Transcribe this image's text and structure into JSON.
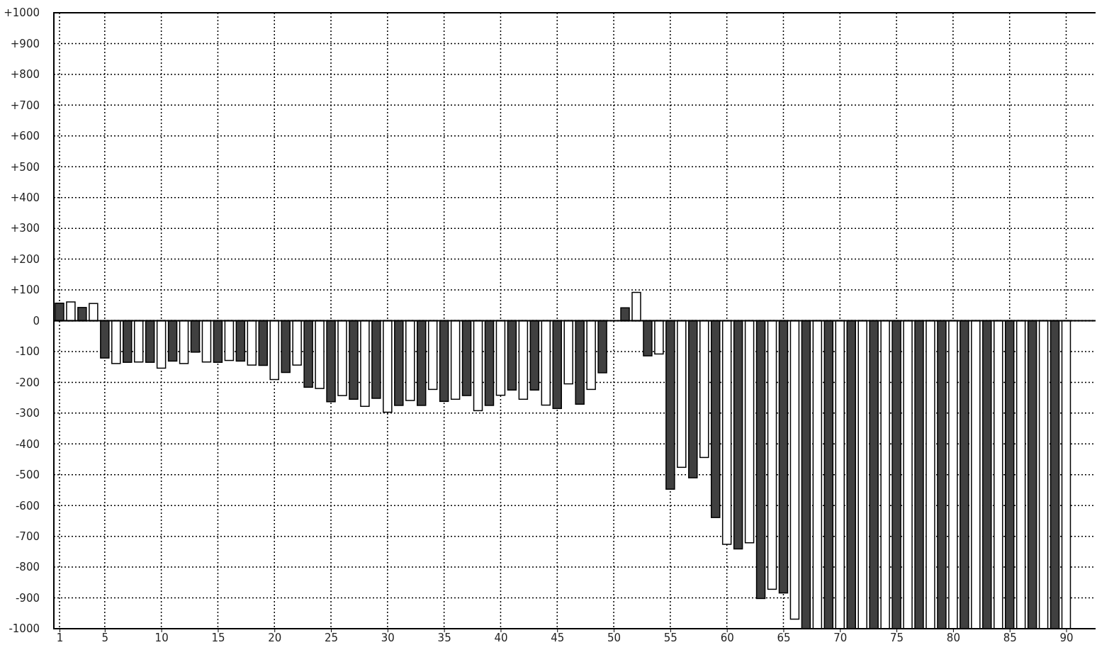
{
  "chart_data": {
    "type": "bar",
    "x": [
      1,
      2,
      3,
      4,
      5,
      6,
      7,
      8,
      9,
      10,
      11,
      12,
      13,
      14,
      15,
      16,
      17,
      18,
      19,
      20,
      21,
      22,
      23,
      24,
      25,
      26,
      27,
      28,
      29,
      30,
      31,
      32,
      33,
      34,
      35,
      36,
      37,
      38,
      39,
      40,
      41,
      42,
      43,
      44,
      45,
      46,
      47,
      48,
      49,
      50,
      51,
      52,
      53,
      54,
      55,
      56,
      57,
      58,
      59,
      60,
      61,
      62,
      63,
      64,
      65,
      66,
      67,
      68,
      69,
      70,
      71,
      72,
      73,
      74,
      75,
      76,
      77,
      78,
      79,
      80,
      81,
      82,
      83,
      84,
      85,
      86,
      87,
      88,
      89,
      90
    ],
    "values": [
      57,
      61,
      43,
      56,
      -121,
      -139,
      -135,
      -134,
      -135,
      -154,
      -131,
      -139,
      -102,
      -134,
      -135,
      -129,
      -131,
      -144,
      -145,
      -191,
      -168,
      -144,
      -216,
      -220,
      -263,
      -243,
      -255,
      -278,
      -252,
      -297,
      -275,
      -259,
      -275,
      -223,
      -262,
      -255,
      -243,
      -292,
      -275,
      -242,
      -225,
      -255,
      -225,
      -274,
      -285,
      -205,
      -271,
      -223,
      -169,
      0,
      42,
      92,
      -114,
      -108,
      -547,
      -476,
      -510,
      -444,
      -639,
      -726,
      -741,
      -721,
      -902,
      -872,
      -884,
      -969,
      -1000,
      -1000,
      -1000,
      -1000,
      -1000,
      -1000,
      -1000,
      -1000,
      -1000,
      -1000,
      -1000,
      -1000,
      -1000,
      -1000,
      -1000,
      -1000,
      -1000,
      -1000,
      -1000,
      -1000,
      -1000,
      -1000,
      -1000,
      -1000
    ],
    "colors": [
      "#404040",
      "#ffffff",
      "#404040",
      "#ffffff",
      "#404040",
      "#ffffff",
      "#404040",
      "#ffffff",
      "#404040",
      "#ffffff",
      "#404040",
      "#ffffff",
      "#404040",
      "#ffffff",
      "#404040",
      "#ffffff",
      "#404040",
      "#ffffff",
      "#404040",
      "#ffffff",
      "#404040",
      "#ffffff",
      "#404040",
      "#ffffff",
      "#404040",
      "#ffffff",
      "#404040",
      "#ffffff",
      "#404040",
      "#ffffff",
      "#404040",
      "#ffffff",
      "#404040",
      "#ffffff",
      "#404040",
      "#ffffff",
      "#404040",
      "#ffffff",
      "#404040",
      "#ffffff",
      "#404040",
      "#ffffff",
      "#404040",
      "#ffffff",
      "#404040",
      "#ffffff",
      "#404040",
      "#ffffff",
      "#404040",
      "#ffffff",
      "#404040",
      "#ffffff",
      "#404040",
      "#ffffff",
      "#404040",
      "#ffffff",
      "#404040",
      "#ffffff",
      "#404040",
      "#ffffff",
      "#404040",
      "#ffffff",
      "#404040",
      "#ffffff",
      "#404040",
      "#ffffff",
      "#404040",
      "#ffffff",
      "#404040",
      "#ffffff",
      "#404040",
      "#ffffff",
      "#404040",
      "#ffffff",
      "#404040",
      "#ffffff",
      "#404040",
      "#ffffff",
      "#404040",
      "#ffffff",
      "#404040",
      "#ffffff",
      "#404040",
      "#ffffff",
      "#404040",
      "#ffffff",
      "#404040",
      "#ffffff",
      "#404040",
      "#ffffff"
    ],
    "xlim": [
      0.5,
      92.6
    ],
    "xticks": [
      1,
      5,
      10,
      15,
      20,
      25,
      30,
      35,
      40,
      45,
      50,
      55,
      60,
      65,
      70,
      75,
      80,
      85,
      90
    ],
    "ylim": [
      -1000,
      1000
    ],
    "yticks": [
      {
        "value": 1000,
        "label": "+1000"
      },
      {
        "value": 900,
        "label": "+900"
      },
      {
        "value": 800,
        "label": "+800"
      },
      {
        "value": 700,
        "label": "+700"
      },
      {
        "value": 600,
        "label": "+600"
      },
      {
        "value": 500,
        "label": "+500"
      },
      {
        "value": 400,
        "label": "+400"
      },
      {
        "value": 300,
        "label": "+300"
      },
      {
        "value": 200,
        "label": "+200"
      },
      {
        "value": 100,
        "label": "+100"
      },
      0,
      -100,
      -200,
      -300,
      -400,
      -500,
      -600,
      -700,
      -800,
      -900,
      -1000
    ],
    "grid": true
  }
}
